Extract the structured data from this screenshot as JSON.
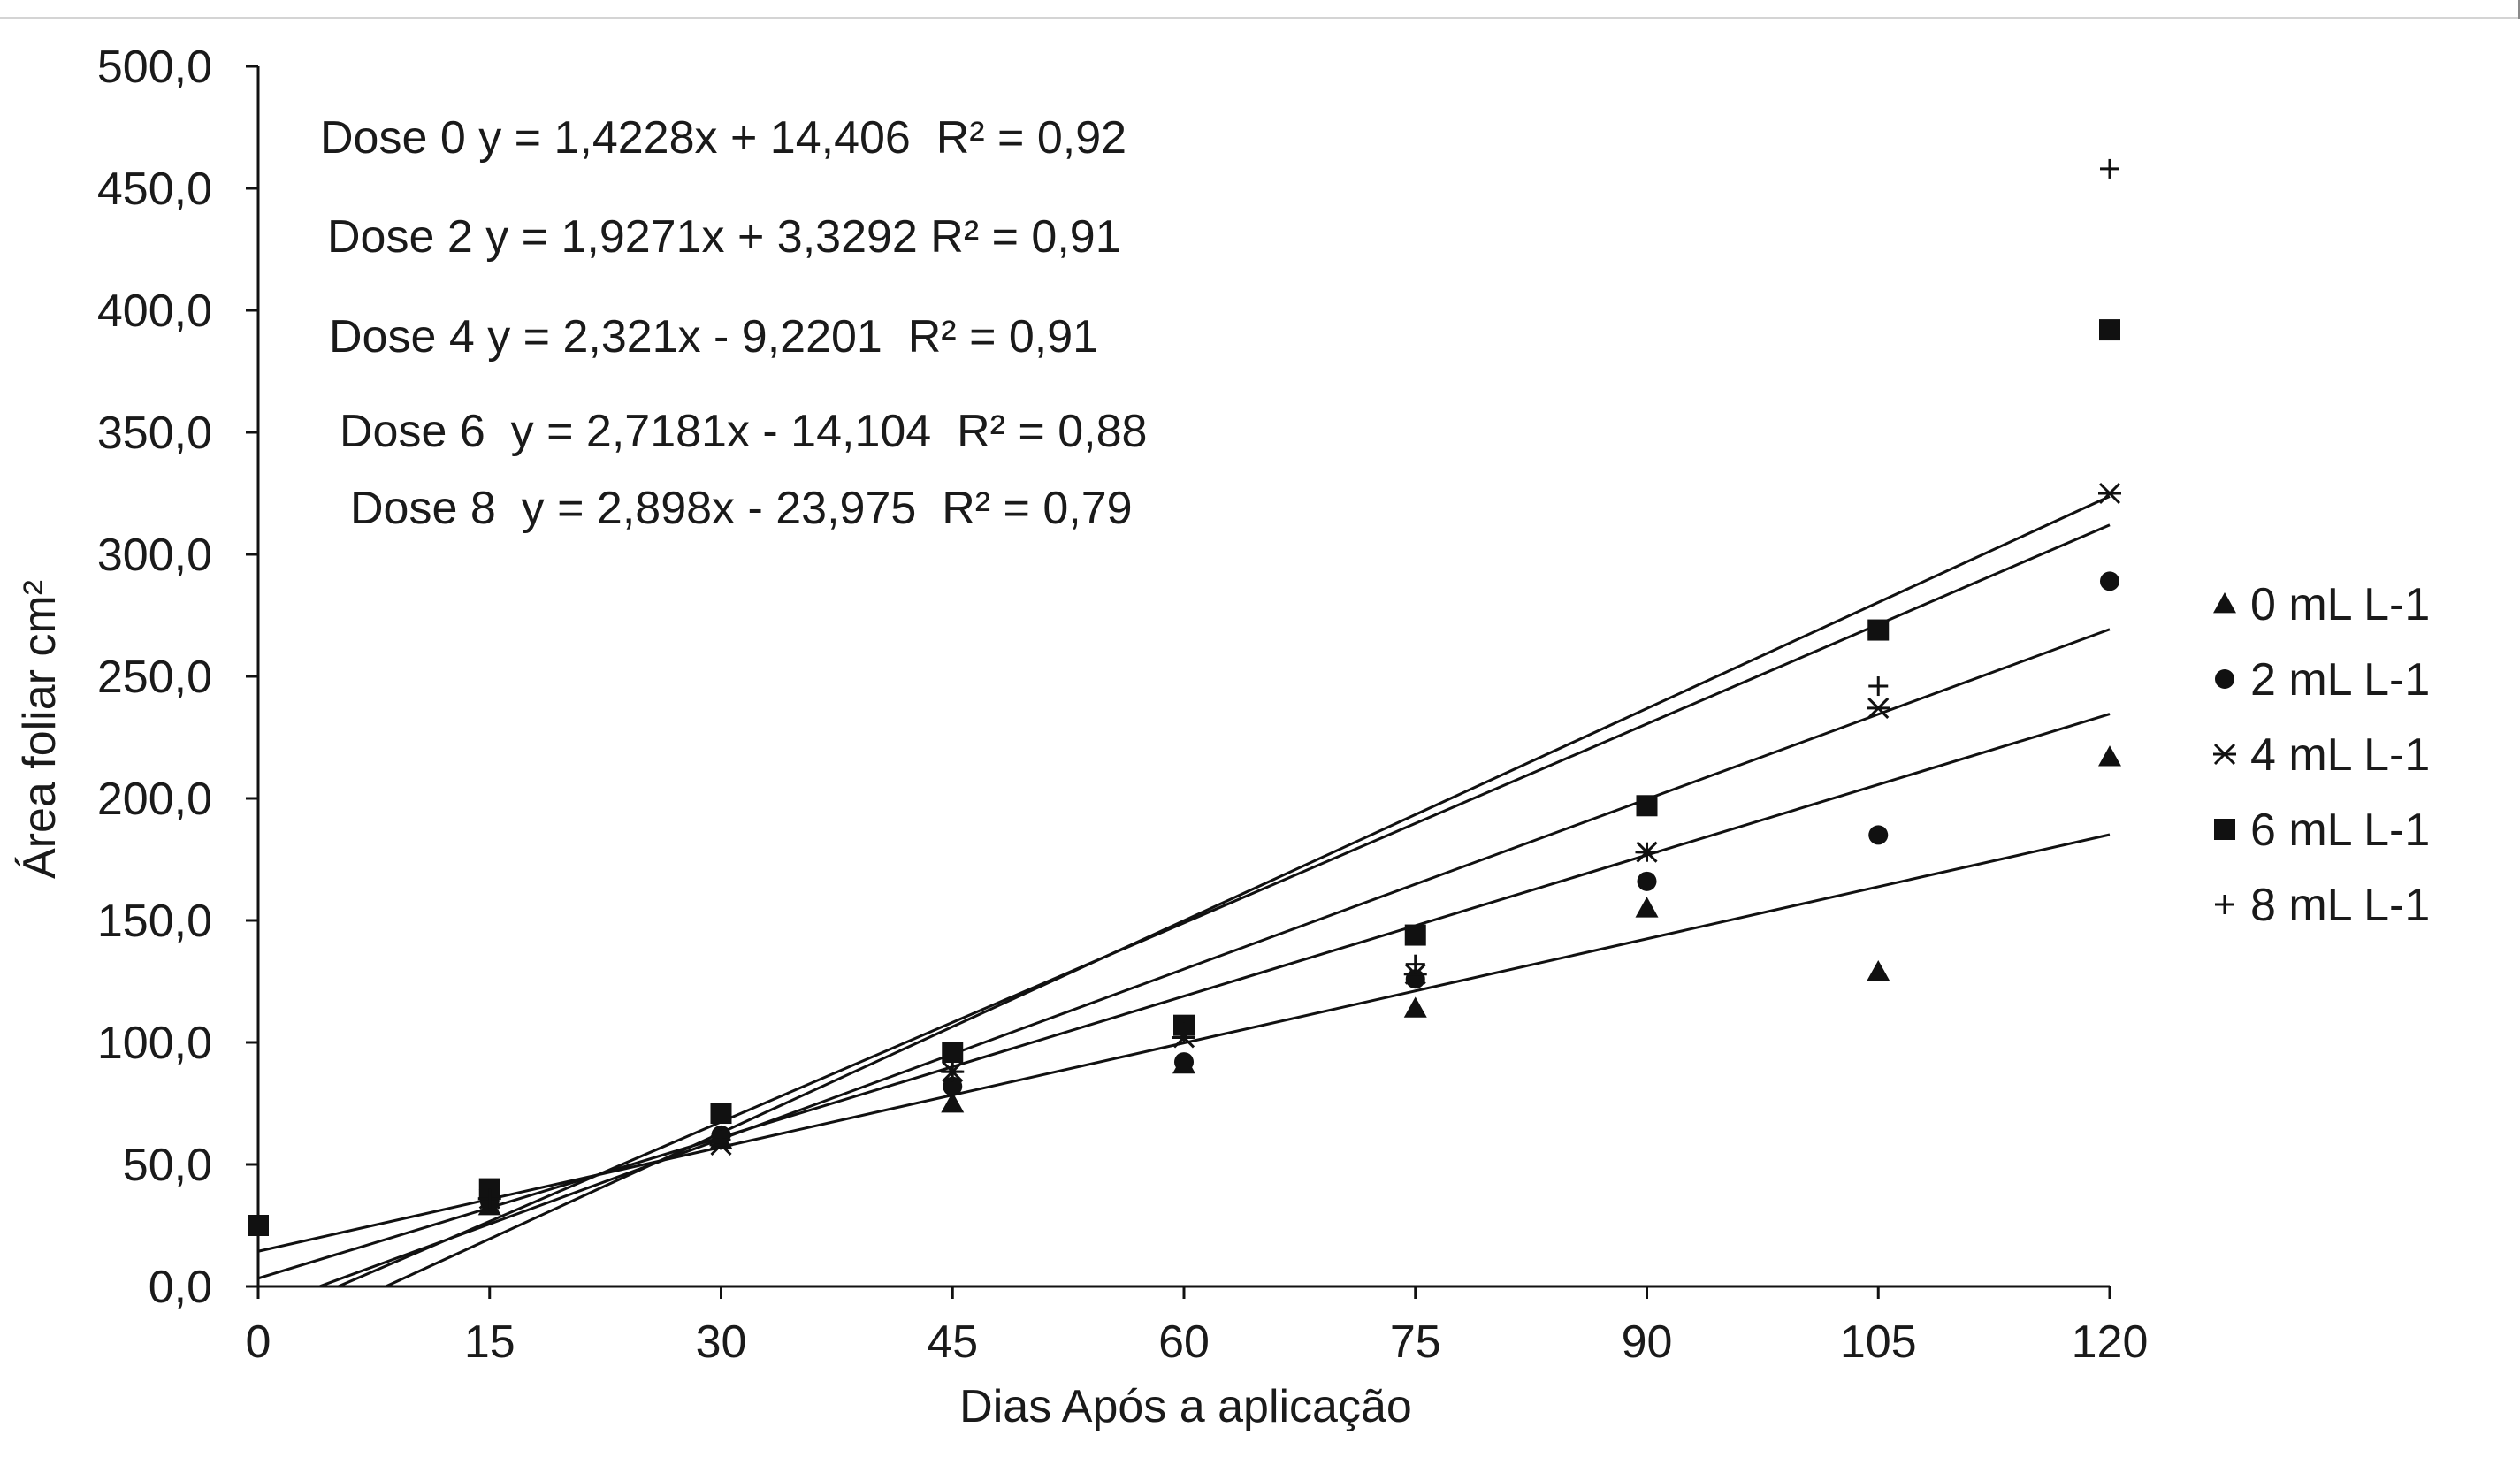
{
  "chart_data": {
    "type": "scatter",
    "xlabel": "Dias Após a aplicação",
    "ylabel": "Área foliar cm²",
    "xlim": [
      0,
      120
    ],
    "ylim": [
      0,
      500
    ],
    "x_ticks": [
      "0",
      "15",
      "30",
      "45",
      "60",
      "75",
      "90",
      "105",
      "120"
    ],
    "y_ticks": [
      "0,0",
      "50,0",
      "100,0",
      "150,0",
      "200,0",
      "250,0",
      "300,0",
      "350,0",
      "400,0",
      "450,0",
      "500,0"
    ],
    "x": [
      0,
      15,
      30,
      45,
      60,
      75,
      90,
      105,
      120
    ],
    "grid": false,
    "legend_position": "right",
    "series": [
      {
        "name": "0 mL L-1",
        "marker": "triangle",
        "points": [
          [
            15,
            33
          ],
          [
            30,
            60
          ],
          [
            45,
            75
          ],
          [
            60,
            91
          ],
          [
            75,
            114
          ],
          [
            90,
            155
          ],
          [
            105,
            129
          ],
          [
            120,
            217
          ]
        ],
        "trend": {
          "slope": 1.4228,
          "intercept": 14.406
        }
      },
      {
        "name": "2 mL L-1",
        "marker": "circle",
        "points": [
          [
            15,
            35
          ],
          [
            30,
            62
          ],
          [
            45,
            82
          ],
          [
            60,
            92
          ],
          [
            75,
            126
          ],
          [
            90,
            166
          ],
          [
            105,
            185
          ],
          [
            120,
            289
          ]
        ],
        "trend": {
          "slope": 1.9271,
          "intercept": 3.3292
        }
      },
      {
        "name": "4 mL L-1",
        "marker": "asterisk",
        "points": [
          [
            15,
            36
          ],
          [
            30,
            58
          ],
          [
            45,
            88
          ],
          [
            60,
            102
          ],
          [
            75,
            128
          ],
          [
            90,
            178
          ],
          [
            105,
            237
          ],
          [
            120,
            325
          ]
        ],
        "trend": {
          "slope": 2.321,
          "intercept": -9.2201
        }
      },
      {
        "name": "6 mL L-1",
        "marker": "square",
        "points": [
          [
            0,
            25
          ],
          [
            15,
            40
          ],
          [
            30,
            71
          ],
          [
            45,
            96
          ],
          [
            60,
            107
          ],
          [
            75,
            144
          ],
          [
            90,
            197
          ],
          [
            105,
            269
          ],
          [
            120,
            392
          ]
        ],
        "trend": {
          "slope": 2.7181,
          "intercept": -14.104
        }
      },
      {
        "name": "8 mL L-1",
        "marker": "plus",
        "points": [
          [
            15,
            36
          ],
          [
            30,
            60
          ],
          [
            45,
            88
          ],
          [
            60,
            104
          ],
          [
            75,
            132
          ],
          [
            90,
            178
          ],
          [
            105,
            246
          ],
          [
            120,
            458
          ]
        ],
        "trend": {
          "slope": 2.898,
          "intercept": -23.975
        }
      }
    ],
    "annotations": [
      "Dose 0 y = 1,4228x + 14,406  R² = 0,92",
      "Dose 2 y = 1,9271x + 3,3292 R² = 0,91",
      "Dose 4 y = 2,321x - 9,2201  R² = 0,91",
      "Dose 6  y = 2,7181x - 14,104  R² = 0,88",
      "Dose 8  y = 2,898x - 23,975  R² = 0,79"
    ]
  }
}
